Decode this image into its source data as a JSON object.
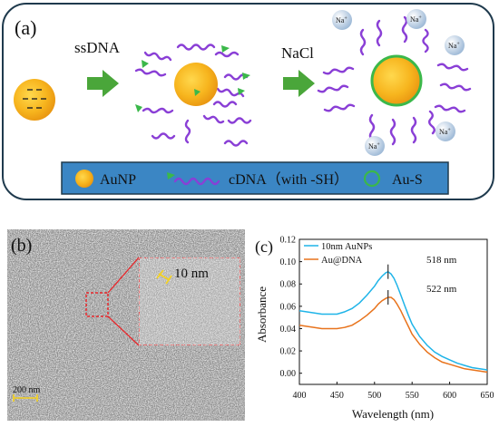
{
  "panel_a": {
    "label": "(a)",
    "step1": "ssDNA",
    "step2": "NaCl",
    "ion": "Na",
    "ion_charge": "+",
    "legend": {
      "aunp": "AuNP",
      "cdna": "cDNA（with -SH）",
      "aus": "Au-S"
    },
    "colors": {
      "frame": "#1f3a4d",
      "legend_bg": "#3b86c4",
      "gold": "#f2a516",
      "gold_core": "#ffc933",
      "dna": "#8a3fd6",
      "tip": "#3bb84a",
      "arrow": "#4aa63a",
      "ion": "#b9d0e6"
    }
  },
  "panel_b": {
    "label": "(b)",
    "zoom_label": "10 nm",
    "scalebar": "200 nm"
  },
  "panel_c": {
    "label": "(c)",
    "peak1": "518 nm",
    "peak2": "522 nm"
  },
  "chart_data": {
    "type": "line",
    "xlabel": "Wavelength (nm)",
    "ylabel": "Absorbance",
    "xlim": [
      400,
      650
    ],
    "ylim": [
      -0.01,
      0.12
    ],
    "xticks": [
      400,
      450,
      500,
      550,
      600,
      650
    ],
    "yticks": [
      0.0,
      0.02,
      0.04,
      0.06,
      0.08,
      0.1,
      0.12
    ],
    "legend_position": "top-left",
    "series": [
      {
        "name": "10nm AuNPs",
        "color": "#1fb4e8",
        "x": [
          400,
          410,
          420,
          430,
          440,
          450,
          460,
          470,
          480,
          490,
          500,
          505,
          510,
          515,
          518,
          522,
          526,
          530,
          535,
          540,
          545,
          550,
          560,
          570,
          580,
          590,
          600,
          610,
          620,
          630,
          640,
          650
        ],
        "y": [
          0.056,
          0.055,
          0.054,
          0.053,
          0.053,
          0.053,
          0.055,
          0.058,
          0.063,
          0.07,
          0.078,
          0.083,
          0.087,
          0.09,
          0.091,
          0.089,
          0.085,
          0.079,
          0.07,
          0.061,
          0.052,
          0.044,
          0.033,
          0.025,
          0.019,
          0.015,
          0.012,
          0.009,
          0.007,
          0.005,
          0.004,
          0.003
        ]
      },
      {
        "name": "Au@DNA",
        "color": "#e8731c",
        "x": [
          400,
          410,
          420,
          430,
          440,
          450,
          460,
          470,
          480,
          490,
          500,
          505,
          510,
          515,
          518,
          522,
          526,
          530,
          535,
          540,
          545,
          550,
          560,
          570,
          580,
          590,
          600,
          610,
          620,
          630,
          640,
          650
        ],
        "y": [
          0.043,
          0.042,
          0.041,
          0.04,
          0.04,
          0.04,
          0.041,
          0.043,
          0.047,
          0.052,
          0.058,
          0.062,
          0.065,
          0.067,
          0.068,
          0.068,
          0.066,
          0.062,
          0.056,
          0.049,
          0.042,
          0.035,
          0.026,
          0.019,
          0.014,
          0.01,
          0.008,
          0.006,
          0.004,
          0.003,
          0.002,
          0.001
        ]
      }
    ]
  }
}
